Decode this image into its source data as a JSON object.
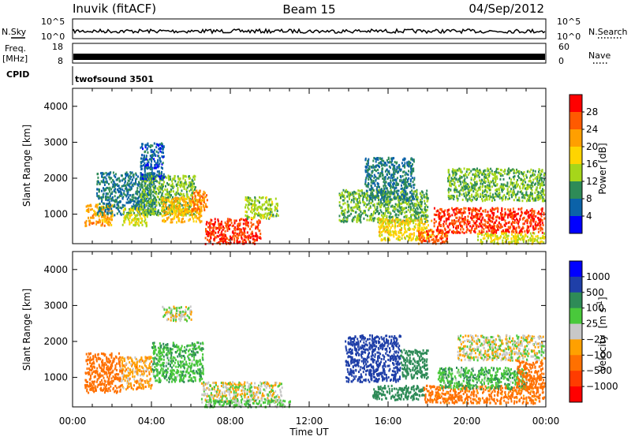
{
  "header": {
    "station": "Inuvik (fitACF)",
    "beam": "Beam 15",
    "date": "04/Sep/2012"
  },
  "top_panels": {
    "nsky_label": "N.Sky",
    "nsky_ticks": [
      "10^5",
      "10^0"
    ],
    "nsearch_label": "N.Search",
    "nsearch_ticks": [
      "10^5",
      "10^0"
    ],
    "freq_label_1": "Freq.",
    "freq_label_2": "[MHz]",
    "freq_ticks": [
      "18",
      "8"
    ],
    "nave_label": "Nave",
    "nave_ticks": [
      "60",
      "0"
    ],
    "cpid_label": "CPID",
    "cpid_value": "twofsound 3501"
  },
  "chart_data": [
    {
      "type": "heatmap",
      "name": "power-panel",
      "ylabel": "Slant Range [km]",
      "yticks": [
        "4000",
        "3000",
        "2000",
        "1000"
      ],
      "ylim": [
        180,
        4500
      ],
      "xlim": [
        0,
        24
      ],
      "colorbar_label": "Power [dB]",
      "colorbar_ticks": [
        "28",
        "24",
        "20",
        "16",
        "12",
        "8",
        "4"
      ],
      "colorbar_colors": [
        "#ff0000",
        "#ff5a00",
        "#ff9f00",
        "#ffd400",
        "#a6d61a",
        "#2e8b57",
        "#0b62a8",
        "#0000ff"
      ],
      "patches": [
        {
          "t0": 0.6,
          "t1": 2.0,
          "r0": 700,
          "r1": 1300,
          "v": 22
        },
        {
          "t0": 1.2,
          "t1": 4.2,
          "r0": 1000,
          "r1": 2200,
          "v": 8
        },
        {
          "t0": 2.5,
          "t1": 3.8,
          "r0": 700,
          "r1": 1200,
          "v": 16
        },
        {
          "t0": 3.4,
          "t1": 6.2,
          "r0": 1000,
          "r1": 2100,
          "v": 12
        },
        {
          "t0": 4.5,
          "t1": 6.5,
          "r0": 800,
          "r1": 1500,
          "v": 20
        },
        {
          "t0": 6.0,
          "t1": 6.8,
          "r0": 1100,
          "r1": 1700,
          "v": 24
        },
        {
          "t0": 6.7,
          "t1": 9.5,
          "r0": 200,
          "r1": 900,
          "v": 28
        },
        {
          "t0": 8.7,
          "t1": 10.4,
          "r0": 900,
          "r1": 1500,
          "v": 14
        },
        {
          "t0": 3.4,
          "t1": 4.6,
          "r0": 2000,
          "r1": 3000,
          "v": 6
        },
        {
          "t0": 13.5,
          "t1": 18.0,
          "r0": 800,
          "r1": 1700,
          "v": 12
        },
        {
          "t0": 14.8,
          "t1": 17.3,
          "r0": 1400,
          "r1": 2600,
          "v": 8
        },
        {
          "t0": 15.5,
          "t1": 18.2,
          "r0": 300,
          "r1": 900,
          "v": 18
        },
        {
          "t0": 17.5,
          "t1": 19.0,
          "r0": 200,
          "r1": 600,
          "v": 26
        },
        {
          "t0": 18.3,
          "t1": 23.9,
          "r0": 500,
          "r1": 1200,
          "v": 28
        },
        {
          "t0": 19.0,
          "t1": 23.9,
          "r0": 1400,
          "r1": 2300,
          "v": 12
        },
        {
          "t0": 20.5,
          "t1": 23.9,
          "r0": 200,
          "r1": 500,
          "v": 16
        }
      ]
    },
    {
      "type": "heatmap",
      "name": "velocity-panel",
      "xlabel": "Time UT",
      "ylabel": "Slant Range [km]",
      "yticks": [
        "4000",
        "3000",
        "2000",
        "1000"
      ],
      "ylim": [
        180,
        4500
      ],
      "xlim": [
        0,
        24
      ],
      "xticks": [
        "00:00",
        "04:00",
        "08:00",
        "12:00",
        "16:00",
        "20:00",
        "00:00"
      ],
      "colorbar_label": "Velocity",
      "colorbar_unit": "[m s",
      "colorbar_unit_exp": "-1",
      "colorbar_unit_end": "]",
      "colorbar_ticks": [
        "1000",
        "500",
        "100",
        "25",
        "−25",
        "−100",
        "−500",
        "−1000"
      ],
      "colorbar_colors": [
        "#0000ff",
        "#1f3fa8",
        "#2e8b57",
        "#49c93b",
        "#c8c8c8",
        "#ffa000",
        "#ff7000",
        "#ff3c00",
        "#ff0000"
      ],
      "patches": [
        {
          "t0": 0.6,
          "t1": 2.4,
          "r0": 600,
          "r1": 1700,
          "v": -200
        },
        {
          "t0": 2.4,
          "t1": 4.0,
          "r0": 700,
          "r1": 1600,
          "v": -60
        },
        {
          "t0": 4.0,
          "t1": 6.6,
          "r0": 900,
          "r1": 2000,
          "v": 80
        },
        {
          "t0": 6.5,
          "t1": 10.6,
          "r0": 350,
          "r1": 900,
          "v": 0
        },
        {
          "t0": 6.5,
          "t1": 11.0,
          "r0": 200,
          "r1": 400,
          "v": 50
        },
        {
          "t0": 4.5,
          "t1": 6.0,
          "r0": 2600,
          "r1": 3000,
          "v": 0
        },
        {
          "t0": 13.8,
          "t1": 16.6,
          "r0": 900,
          "r1": 2200,
          "v": 700
        },
        {
          "t0": 16.6,
          "t1": 18.0,
          "r0": 1000,
          "r1": 1800,
          "v": 300
        },
        {
          "t0": 15.2,
          "t1": 17.8,
          "r0": 400,
          "r1": 800,
          "v": 400
        },
        {
          "t0": 17.8,
          "t1": 23.9,
          "r0": 300,
          "r1": 800,
          "v": -150
        },
        {
          "t0": 18.5,
          "t1": 23.0,
          "r0": 700,
          "r1": 1300,
          "v": 80
        },
        {
          "t0": 19.5,
          "t1": 23.9,
          "r0": 1500,
          "r1": 2200,
          "v": 0
        },
        {
          "t0": 22.5,
          "t1": 23.9,
          "r0": 700,
          "r1": 1500,
          "v": -300
        }
      ]
    }
  ]
}
